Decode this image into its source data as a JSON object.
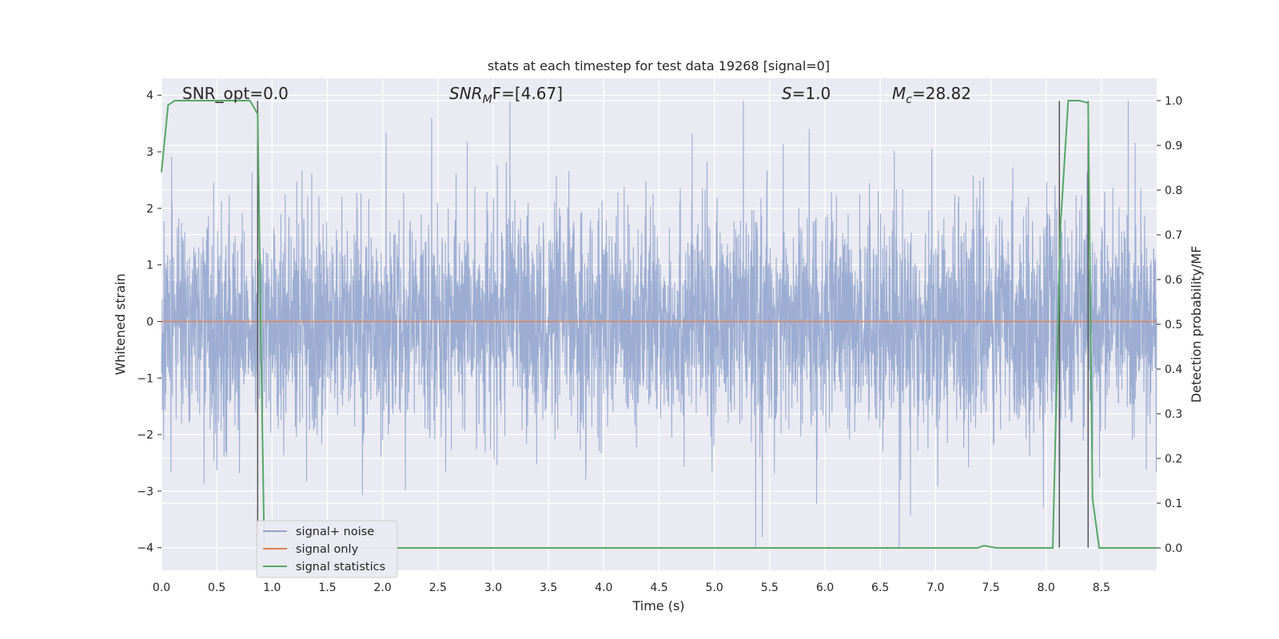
{
  "chart_data": {
    "type": "line",
    "title": "stats at each timestep for test data 19268 [signal=0]",
    "xlabel": "Time (s)",
    "ylabel": "Whitened strain",
    "ylabel_right": "Detection probability/MF",
    "xlim": [
      0.0,
      9.0
    ],
    "ylim": [
      -4.4,
      4.3
    ],
    "ylim_right": [
      -0.05,
      1.05
    ],
    "xticks": [
      "0.0",
      "0.5",
      "1.0",
      "1.5",
      "2.0",
      "2.5",
      "3.0",
      "3.5",
      "4.0",
      "4.5",
      "5.0",
      "5.5",
      "6.0",
      "6.5",
      "7.0",
      "7.5",
      "8.0",
      "8.5"
    ],
    "xtick_values": [
      0.0,
      0.5,
      1.0,
      1.5,
      2.0,
      2.5,
      3.0,
      3.5,
      4.0,
      4.5,
      5.0,
      5.5,
      6.0,
      6.5,
      7.0,
      7.5,
      8.0,
      8.5
    ],
    "yticks": [
      "−4",
      "−3",
      "−2",
      "−1",
      "0",
      "1",
      "2",
      "3",
      "4"
    ],
    "ytick_values": [
      -4,
      -3,
      -2,
      -1,
      0,
      1,
      2,
      3,
      4
    ],
    "yticks_right": [
      "0.0",
      "0.1",
      "0.2",
      "0.3",
      "0.4",
      "0.5",
      "0.6",
      "0.7",
      "0.8",
      "0.9",
      "1.0"
    ],
    "ytick_values_right": [
      0.0,
      0.1,
      0.2,
      0.3,
      0.4,
      0.5,
      0.6,
      0.7,
      0.8,
      0.9,
      1.0
    ],
    "grid": true,
    "legend_placement": "lower-left",
    "annotations": {
      "snr_opt": "SNR_opt=0.0",
      "snr_mf_symbol": "SNR",
      "snr_mf_sub": "M",
      "snr_mf_rest": "F=[4.67]",
      "s_symbol": "S",
      "s_rest": "=1.0",
      "mc_symbol": "M",
      "mc_sub": "c",
      "mc_rest": "=28.82"
    },
    "series": [
      {
        "name": "signal+ noise",
        "color": "#8fa2cc",
        "axis": "left",
        "noise": {
          "t_start": 0.0,
          "t_end": 9.0,
          "typical_amplitude": 1.6,
          "max": 3.9,
          "min": -4.0
        }
      },
      {
        "name": "signal only",
        "color": "#dd8452",
        "axis": "left",
        "x": [
          0.0,
          9.0
        ],
        "y": [
          0.0,
          0.0
        ]
      },
      {
        "name": "signal statistics",
        "color": "#55a868",
        "axis": "right",
        "x": [
          0.0,
          0.06,
          0.12,
          0.3,
          0.5,
          0.7,
          0.8,
          0.87,
          0.91,
          0.93,
          0.96,
          1.0,
          2.0,
          3.0,
          4.0,
          5.0,
          6.0,
          7.0,
          7.38,
          7.44,
          7.55,
          7.8,
          8.06,
          8.13,
          8.2,
          8.3,
          8.38,
          8.42,
          8.48,
          9.0
        ],
        "y": [
          0.84,
          0.99,
          1.0,
          1.0,
          1.0,
          1.0,
          1.0,
          0.97,
          0.3,
          0.0,
          0.0,
          0.0,
          0.0,
          0.0,
          0.0,
          0.0,
          0.0,
          0.0,
          0.0,
          0.005,
          0.0,
          0.0,
          0.0,
          0.72,
          1.0,
          1.0,
          0.995,
          0.11,
          0.0,
          0.0
        ]
      }
    ],
    "vertical_lines": {
      "color": "#555555",
      "x": [
        0.87,
        8.12,
        8.38
      ],
      "ymin": -4.0,
      "ymax": 3.9
    }
  },
  "colors": {
    "axes_background": "#eaeaf2",
    "grid": "#ffffff"
  }
}
